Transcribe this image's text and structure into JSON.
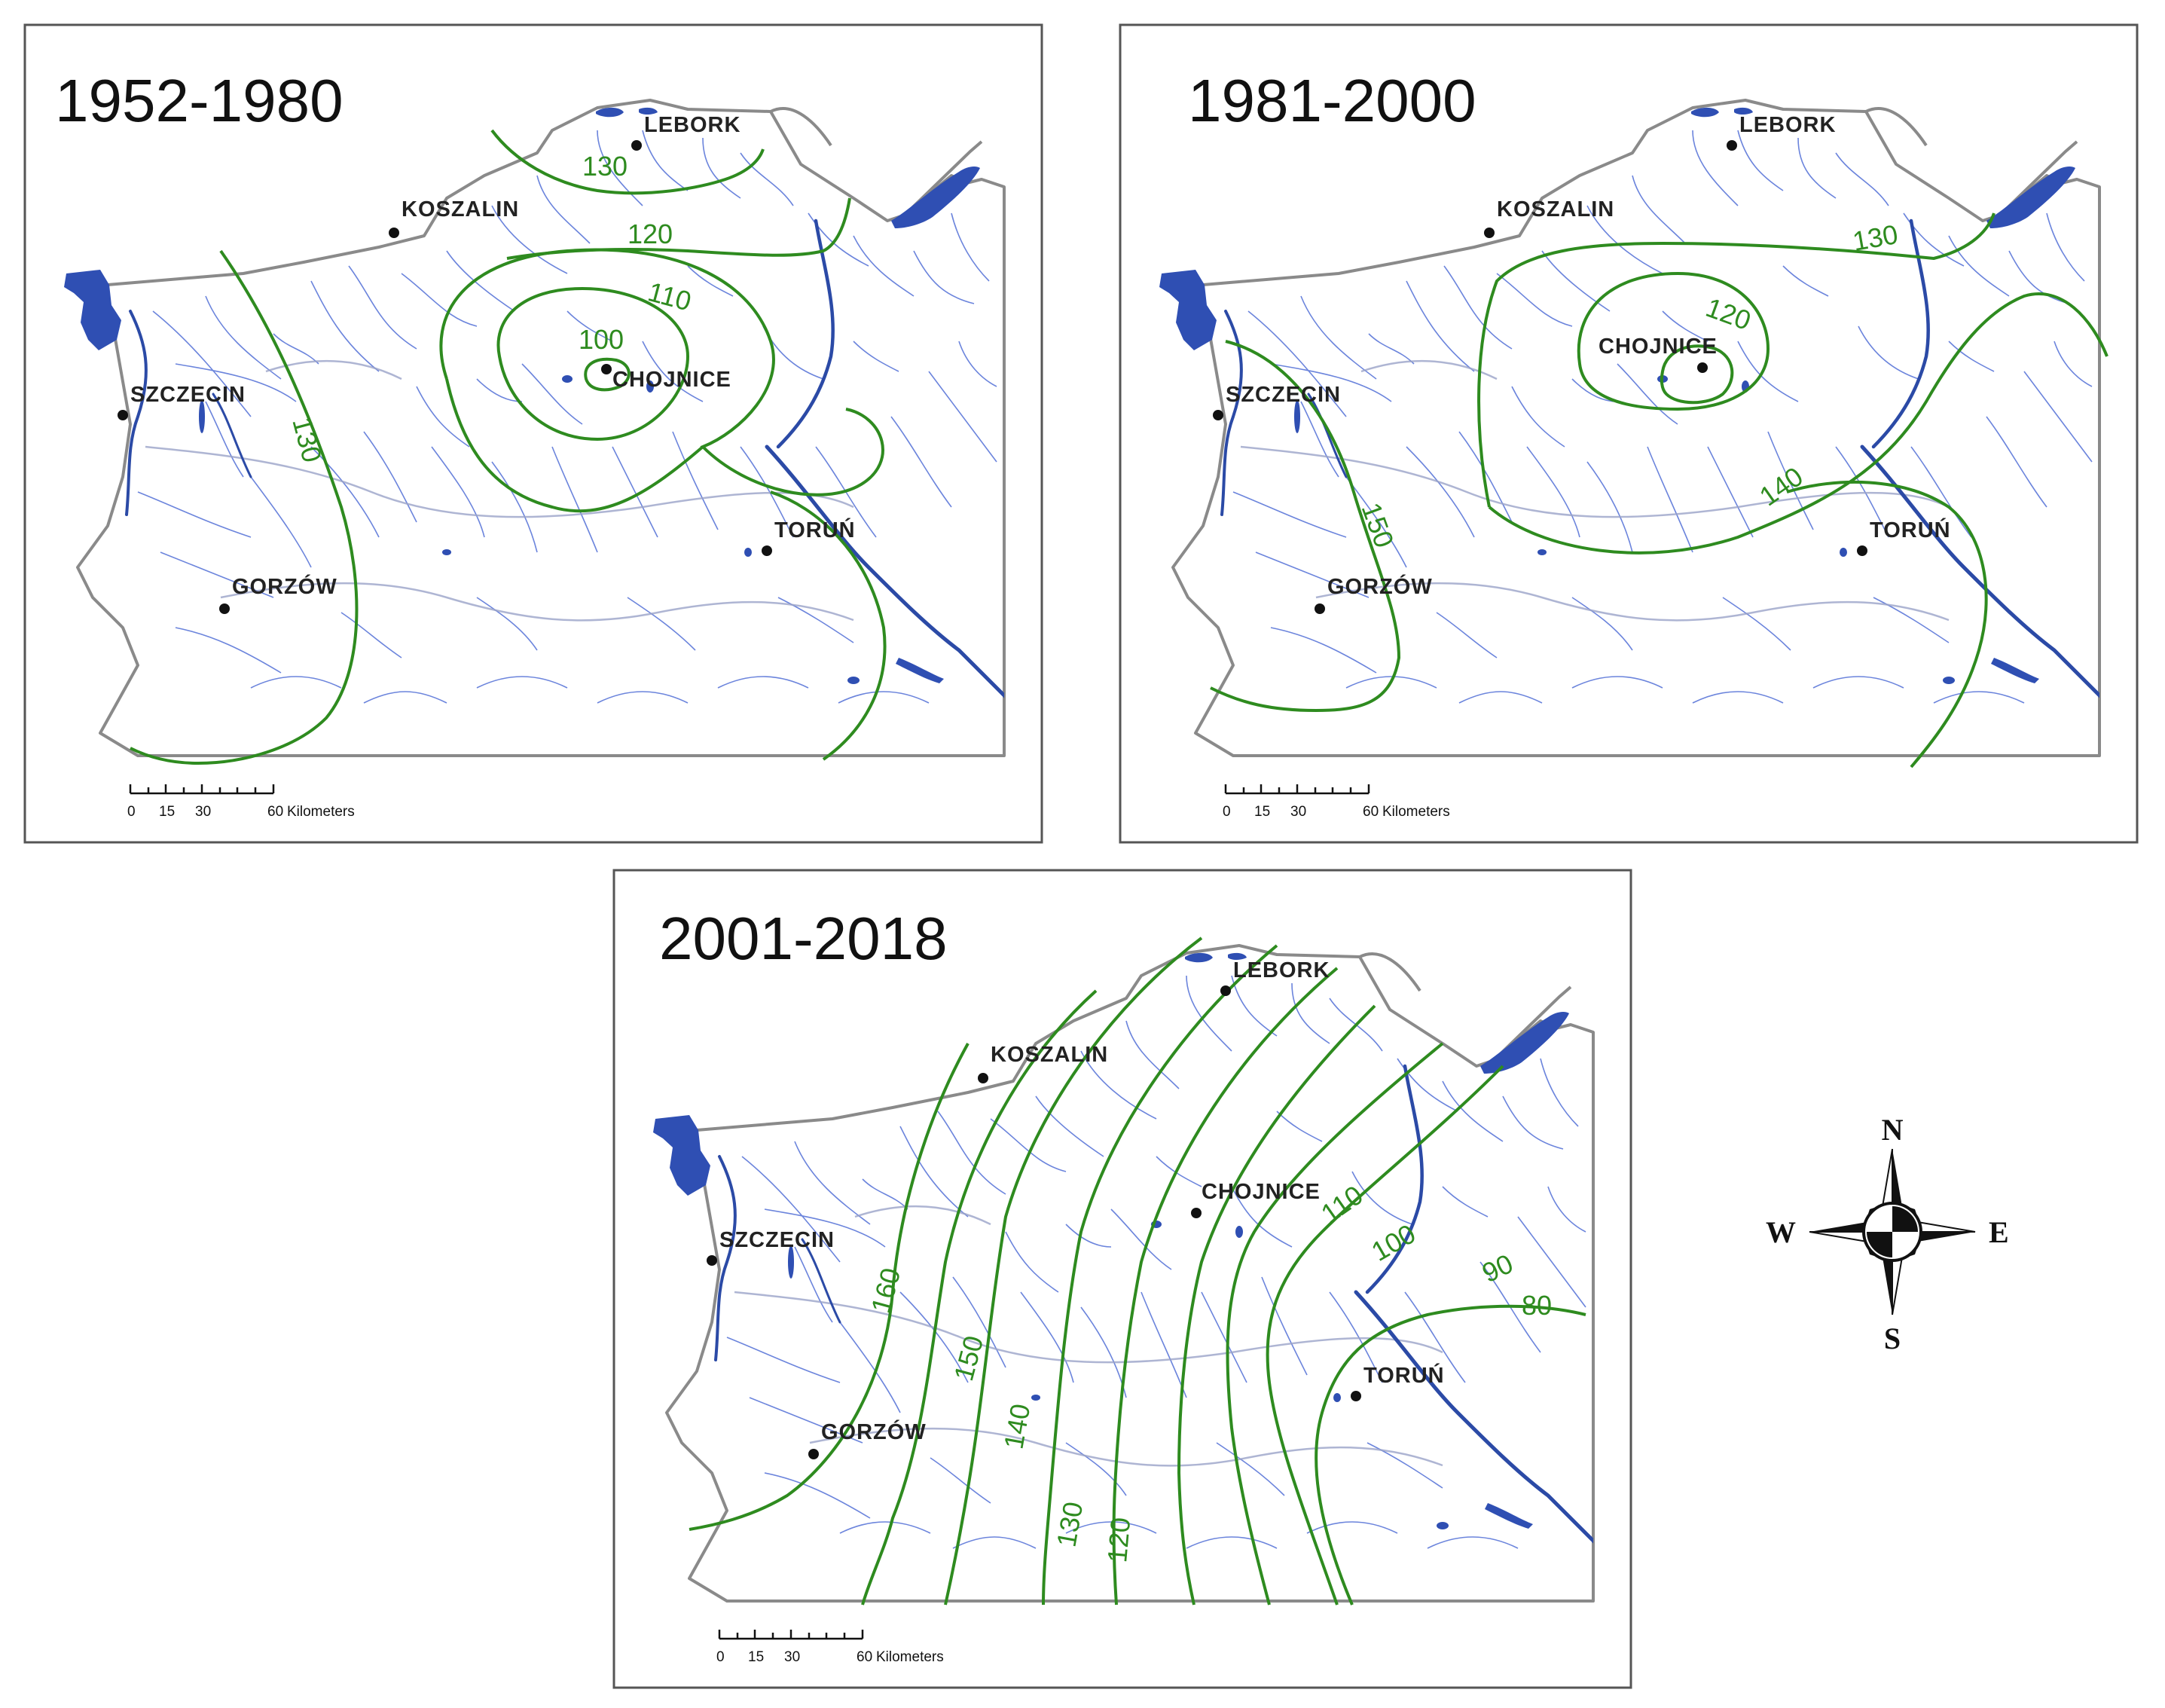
{
  "panels": [
    {
      "id": "p1",
      "period": "1952-1980",
      "isolines": [
        {
          "label": "130",
          "key": "n130"
        },
        {
          "label": "120",
          "key": "c120"
        },
        {
          "label": "110",
          "key": "ring110"
        },
        {
          "label": "100",
          "key": "ring100"
        },
        {
          "label": "130",
          "key": "w130"
        }
      ]
    },
    {
      "id": "p2",
      "period": "1981-2000",
      "isolines": [
        {
          "label": "130",
          "key": "n130"
        },
        {
          "label": "120",
          "key": "ring120"
        },
        {
          "label": "140",
          "key": "c140"
        },
        {
          "label": "150",
          "key": "w150"
        }
      ]
    },
    {
      "id": "p3",
      "period": "2001-2018",
      "isolines": [
        {
          "label": "160"
        },
        {
          "label": "150"
        },
        {
          "label": "140"
        },
        {
          "label": "130"
        },
        {
          "label": "120"
        },
        {
          "label": "110"
        },
        {
          "label": "100"
        },
        {
          "label": "90"
        },
        {
          "label": "80"
        }
      ]
    }
  ],
  "cities": {
    "lebork": "LEBORK",
    "koszalin": "KOSZALIN",
    "szczecin": "SZCZECIN",
    "chojnice": "CHOJNICE",
    "gorzow": "GORZÓW",
    "torun": "TORUŃ"
  },
  "scale_bar": {
    "ticks": [
      "0",
      "15",
      "30",
      "60"
    ],
    "unit": "Kilometers"
  },
  "compass": {
    "north": "N",
    "south": "S",
    "east": "E",
    "west": "W"
  },
  "colors": {
    "isoline": "#2e8b1f",
    "water": "#2f4fb3",
    "frame": "#555555"
  }
}
